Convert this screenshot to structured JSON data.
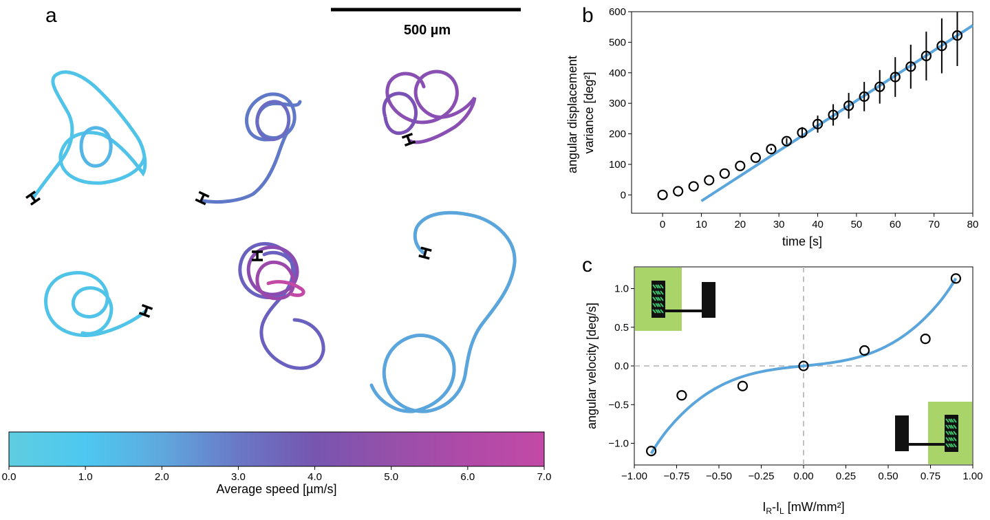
{
  "panel_a": {
    "letter": "a",
    "scale_bar_label": "500 µm",
    "colorbar": {
      "label": "Average speed [µm/s]",
      "ticks": [
        "0.0",
        "1.0",
        "2.0",
        "3.0",
        "4.0",
        "5.0",
        "6.0",
        "7.0"
      ],
      "range": [
        0,
        7
      ],
      "colors": [
        "#5fcde0",
        "#4dc8f0",
        "#5fa8de",
        "#6a78c6",
        "#7656b0",
        "#9650aa",
        "#b04aa8",
        "#c24aa6"
      ]
    },
    "trajectory_colors": {
      "cyan": "#4fc3e8",
      "sky": "#5aa5dc",
      "blue_violet": "#5f6ec6",
      "violet": "#7c4fb4",
      "magenta": "#b04aa8"
    }
  },
  "chart_data": [
    {
      "panel": "b",
      "type": "scatter",
      "xlabel": "time [s]",
      "ylabel": "angular displacement variance [deg²]",
      "xlim": [
        -8,
        80
      ],
      "ylim": [
        -60,
        600
      ],
      "xticks": [
        0,
        10,
        20,
        30,
        40,
        50,
        60,
        70,
        80
      ],
      "yticks": [
        0,
        100,
        200,
        300,
        400,
        500,
        600
      ],
      "series": [
        {
          "kind": "points",
          "marker": "open-circle",
          "x": [
            0,
            4,
            8,
            12,
            16,
            20,
            24,
            28,
            32,
            36,
            40,
            44,
            48,
            52,
            56,
            60,
            64,
            68,
            72,
            76
          ],
          "y": [
            0,
            12,
            28,
            48,
            70,
            95,
            122,
            150,
            176,
            204,
            232,
            262,
            292,
            322,
            354,
            386,
            420,
            455,
            488,
            522
          ],
          "err": [
            0,
            0,
            0,
            0,
            0,
            0,
            0,
            4,
            10,
            18,
            28,
            35,
            42,
            48,
            55,
            65,
            72,
            80,
            90,
            100
          ]
        },
        {
          "kind": "fit-line",
          "color": "#5aa5dc",
          "x": [
            10,
            80
          ],
          "y": [
            -20,
            555
          ]
        }
      ]
    },
    {
      "panel": "c",
      "type": "scatter",
      "xlabel": "I",
      "xlabel_sub_r": "R",
      "xlabel_dash": "-I",
      "xlabel_sub_l": "L",
      "xlabel_unit": " [mW/mm²]",
      "ylabel": "angular velocity [deg/s]",
      "xlim": [
        -1.0,
        1.0
      ],
      "ylim": [
        -1.28,
        1.28
      ],
      "xticks": [
        "−1.00",
        "−0.75",
        "−0.50",
        "−0.25",
        "0.00",
        "0.25",
        "0.50",
        "0.75",
        "1.00"
      ],
      "xtick_values": [
        -1.0,
        -0.75,
        -0.5,
        -0.25,
        0.0,
        0.25,
        0.5,
        0.75,
        1.0
      ],
      "yticks": [
        "−1.0",
        "−0.5",
        "0.0",
        "0.5",
        "1.0"
      ],
      "ytick_values": [
        -1.0,
        -0.5,
        0.0,
        0.5,
        1.0
      ],
      "series": [
        {
          "kind": "points",
          "marker": "open-circle",
          "x": [
            -0.9,
            -0.72,
            -0.36,
            0.0,
            0.36,
            0.72,
            0.9
          ],
          "y": [
            -1.1,
            -0.38,
            -0.26,
            0.0,
            0.2,
            0.35,
            1.13
          ]
        },
        {
          "kind": "fit-curve",
          "color": "#5aa5dc",
          "model": "cubic-plus-linear",
          "a": 1.25,
          "b": 0.22,
          "x_range": [
            -0.9,
            0.9
          ]
        }
      ],
      "reference_lines": {
        "x": 0,
        "y": 0,
        "style": "dashed",
        "color": "#bbbbbb"
      },
      "insets": {
        "background": "#a8d46a",
        "chevron_color": "#3ec46a"
      }
    }
  ],
  "panel_b": {
    "letter": "b"
  },
  "panel_c": {
    "letter": "c"
  }
}
